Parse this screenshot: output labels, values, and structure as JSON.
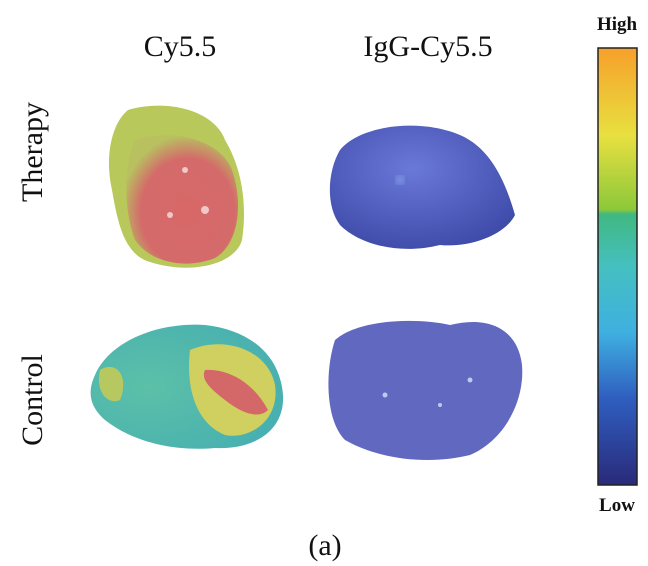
{
  "column_labels": [
    "Cy5.5",
    "IgG-Cy5.5"
  ],
  "row_labels": [
    "Therapy",
    "Control"
  ],
  "colorbar": {
    "high": "High",
    "low": "Low"
  },
  "caption": "(a)"
}
